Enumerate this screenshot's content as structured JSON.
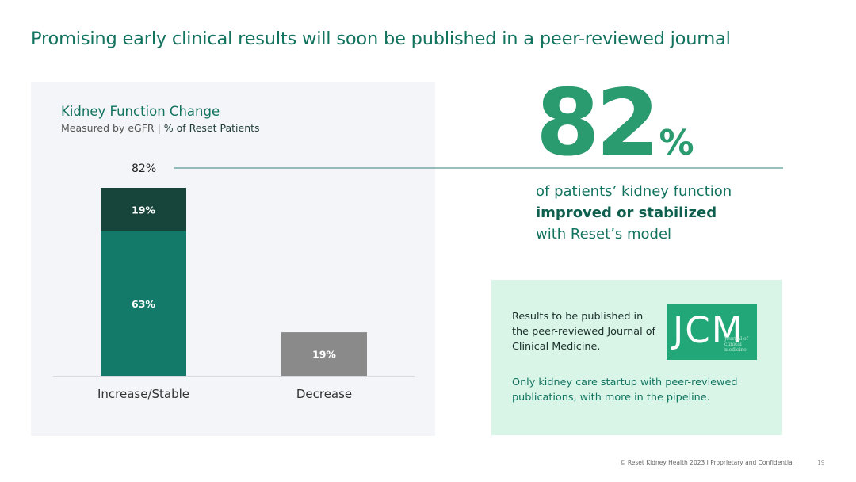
{
  "slide_title": "Promising early clinical results will soon be published in a peer-reviewed journal",
  "colors": {
    "brand_green": "#12735f",
    "accent_green": "#2a9a6f",
    "bar_top": "#18453b",
    "bar_bottom": "#137a6a",
    "bar_decrease": "#8a8a8a",
    "callout_bg": "#d8f5e8"
  },
  "chart_data": {
    "type": "bar",
    "stacked": true,
    "title": "Kidney Function Change",
    "subtitle_prefix": "Measured by eGFR | ",
    "subtitle_unit": "% of Reset Patients",
    "categories": [
      "Increase/Stable",
      "Decrease"
    ],
    "series": [
      {
        "values": [
          63,
          19
        ],
        "labels": [
          "63%",
          "19%"
        ]
      },
      {
        "values": [
          19,
          0
        ],
        "labels": [
          "19%",
          ""
        ]
      }
    ],
    "totals": [
      {
        "category": "Increase/Stable",
        "value": 82,
        "label": "82%"
      }
    ],
    "ylim": [
      0,
      82
    ],
    "grid": false,
    "legend": "none"
  },
  "headline_stat": {
    "number": "82",
    "unit": "%",
    "line1": "of patients’ kidney function",
    "line2": "improved or stabilized",
    "line3": "with Reset’s model"
  },
  "callout": {
    "text": "Results to be published in the peer-reviewed Journal of Clinical Medicine.",
    "logo_letters": "JCM",
    "logo_small_text": "Journal of clinical medicine",
    "note": "Only kidney care startup with peer-reviewed publications, with more in the pipeline."
  },
  "footer": {
    "text": "© Reset Kidney Health 2023   I   Proprietary and Confidential",
    "page": "19"
  }
}
